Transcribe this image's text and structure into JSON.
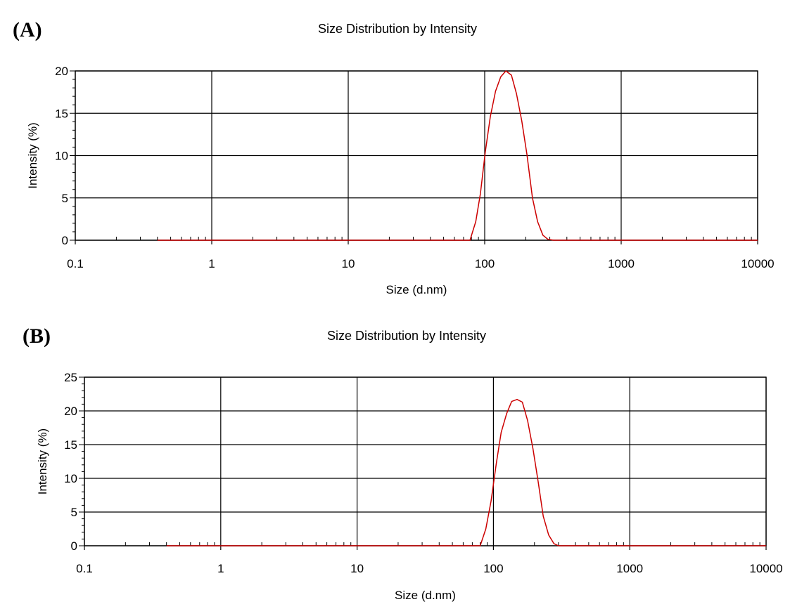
{
  "chart_data": [
    {
      "panel": "(A)",
      "type": "line",
      "title": "Size Distribution by Intensity",
      "xlabel": "Size (d.nm)",
      "ylabel": "Intensity (%)",
      "xscale": "log",
      "xlim": [
        0.1,
        10000
      ],
      "ylim": [
        0,
        20
      ],
      "xticks": [
        "0.1",
        "1",
        "10",
        "100",
        "1000",
        "10000"
      ],
      "yticks": [
        "0",
        "5",
        "10",
        "15",
        "20"
      ],
      "ytick_values": [
        0,
        5,
        10,
        15,
        20
      ],
      "grid": true,
      "line_color": "#cc0000",
      "series": [
        {
          "x": [
            0.4,
            78,
            86,
            93,
            101,
            110,
            120,
            131,
            143,
            157,
            171,
            187,
            204,
            224,
            244,
            267,
            291,
            320,
            10000
          ],
          "y": [
            0,
            0,
            2.2,
            5.5,
            10.4,
            14.6,
            17.6,
            19.3,
            20.0,
            19.5,
            17.3,
            14.1,
            10.1,
            5.0,
            2.2,
            0.6,
            0.1,
            0,
            0
          ]
        }
      ]
    },
    {
      "panel": "(B)",
      "type": "line",
      "title": "Size Distribution by Intensity",
      "xlabel": "Size (d.nm)",
      "ylabel": "Intensity (%)",
      "xscale": "log",
      "xlim": [
        0.1,
        10000
      ],
      "ylim": [
        0,
        25
      ],
      "xticks": [
        "0.1",
        "1",
        "10",
        "100",
        "1000",
        "10000"
      ],
      "yticks": [
        "0",
        "5",
        "10",
        "15",
        "20",
        "25"
      ],
      "ytick_values": [
        0,
        5,
        10,
        15,
        20,
        25
      ],
      "grid": true,
      "line_color": "#cc0000",
      "series": [
        {
          "x": [
            0.4,
            80,
            88,
            96,
            105,
            114,
            125,
            136,
            149,
            163,
            178,
            195,
            213,
            232,
            254,
            278,
            300,
            10000
          ],
          "y": [
            0,
            0,
            2.5,
            6.6,
            12.2,
            16.8,
            19.6,
            21.4,
            21.7,
            21.3,
            18.6,
            14.4,
            9.5,
            4.4,
            1.6,
            0.3,
            0,
            0
          ]
        }
      ]
    }
  ]
}
